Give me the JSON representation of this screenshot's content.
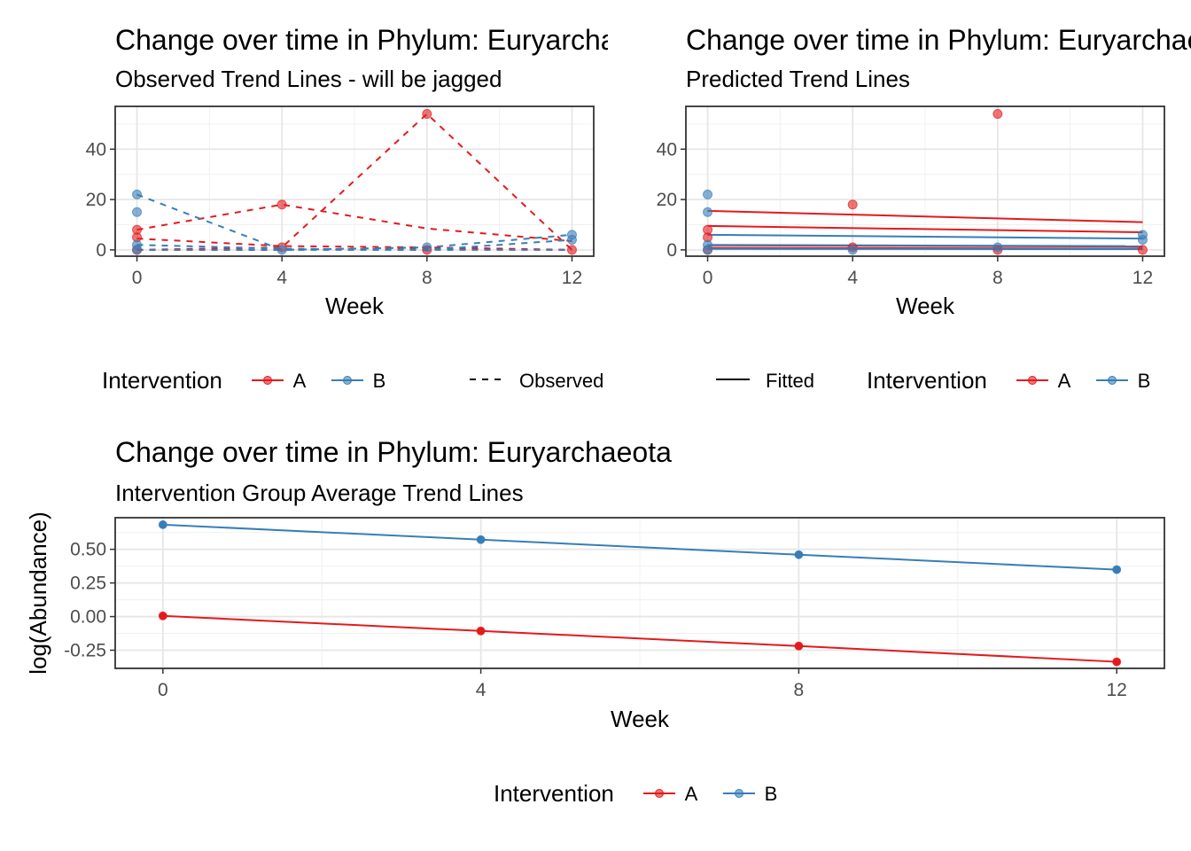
{
  "colors": {
    "A": "#E41A1C",
    "B": "#377EB8"
  },
  "chart_data": [
    {
      "type": "line",
      "title": "Change over time in Phylum: Euryarchaeota",
      "subtitle": "Observed Trend Lines - will be jagged",
      "xlabel": "Week",
      "ylabel": "",
      "x_ticks": [
        0,
        4,
        8,
        12
      ],
      "y_ticks": [
        0,
        20,
        40
      ],
      "xlim": [
        -0.6,
        12.6
      ],
      "ylim": [
        -2.5,
        57
      ],
      "grid": true,
      "line_style": "dashed",
      "legend": {
        "title": "Intervention",
        "items": [
          "A",
          "B"
        ],
        "linetype_label": "Observed",
        "position": "bottom"
      },
      "series": [
        {
          "group": "A",
          "x": [
            0,
            4,
            8,
            12
          ],
          "y": [
            0,
            1,
            54,
            0
          ]
        },
        {
          "group": "A",
          "x": [
            0,
            4,
            8,
            12
          ],
          "y": [
            8,
            18,
            8.5,
            3.5
          ]
        },
        {
          "group": "A",
          "x": [
            0,
            4,
            8,
            12
          ],
          "y": [
            4.5,
            1.5,
            1,
            0
          ]
        },
        {
          "group": "A",
          "x": [
            0,
            4,
            8,
            12
          ],
          "y": [
            0,
            0,
            0.5,
            0
          ]
        },
        {
          "group": "B",
          "x": [
            0,
            4,
            8,
            12
          ],
          "y": [
            22,
            0,
            1,
            6
          ]
        },
        {
          "group": "B",
          "x": [
            0,
            4,
            8,
            12
          ],
          "y": [
            2,
            0.5,
            0,
            4
          ]
        },
        {
          "group": "B",
          "x": [
            0,
            4,
            8,
            12
          ],
          "y": [
            0,
            0,
            0,
            0
          ]
        }
      ],
      "points": [
        {
          "group": "A",
          "x": [
            0,
            0,
            0,
            4,
            4,
            8,
            8,
            12
          ],
          "y": [
            8,
            5,
            0,
            18,
            1,
            54,
            0,
            0
          ]
        },
        {
          "group": "B",
          "x": [
            0,
            0,
            0,
            0,
            4,
            8,
            12,
            12
          ],
          "y": [
            22,
            15,
            2,
            0,
            0,
            1,
            6,
            4
          ]
        }
      ]
    },
    {
      "type": "line",
      "title": "Change over time in Phylum: Euryarchaeota",
      "subtitle": "Predicted Trend Lines",
      "xlabel": "Week",
      "ylabel": "",
      "x_ticks": [
        0,
        4,
        8,
        12
      ],
      "y_ticks": [
        0,
        20,
        40
      ],
      "xlim": [
        -0.6,
        12.6
      ],
      "ylim": [
        -2.5,
        57
      ],
      "grid": true,
      "line_style": "solid",
      "legend": {
        "title": "Intervention",
        "items": [
          "A",
          "B"
        ],
        "linetype_label": "Fitted",
        "position": "bottom"
      },
      "series": [
        {
          "group": "A",
          "x": [
            0,
            12
          ],
          "y": [
            15.5,
            11
          ]
        },
        {
          "group": "A",
          "x": [
            0,
            12
          ],
          "y": [
            9.5,
            7
          ]
        },
        {
          "group": "A",
          "x": [
            0,
            12
          ],
          "y": [
            1.8,
            1.3
          ]
        },
        {
          "group": "A",
          "x": [
            0,
            12
          ],
          "y": [
            0.8,
            0.5
          ]
        },
        {
          "group": "B",
          "x": [
            0,
            12
          ],
          "y": [
            6,
            4.5
          ]
        },
        {
          "group": "B",
          "x": [
            0,
            12
          ],
          "y": [
            2,
            1.5
          ]
        },
        {
          "group": "B",
          "x": [
            0,
            12
          ],
          "y": [
            0.4,
            0.3
          ]
        }
      ],
      "points": [
        {
          "group": "A",
          "x": [
            0,
            0,
            0,
            4,
            4,
            8,
            8,
            12
          ],
          "y": [
            8,
            5,
            0,
            18,
            1,
            54,
            0,
            0
          ]
        },
        {
          "group": "B",
          "x": [
            0,
            0,
            0,
            0,
            4,
            8,
            12,
            12
          ],
          "y": [
            22,
            15,
            2,
            0,
            0,
            1,
            6,
            4
          ]
        }
      ]
    },
    {
      "type": "line",
      "title": "Change over time in Phylum: Euryarchaeota",
      "subtitle": "Intervention Group Average Trend Lines",
      "xlabel": "Week",
      "ylabel": "log(Abundance)",
      "x_ticks": [
        0,
        4,
        8,
        12
      ],
      "y_ticks": [
        -0.25,
        0.0,
        0.25,
        0.5
      ],
      "y_tick_labels": [
        "-0.25",
        "0.00",
        "0.25",
        "0.50"
      ],
      "xlim": [
        -0.6,
        12.6
      ],
      "ylim": [
        -0.385,
        0.735
      ],
      "grid": true,
      "line_style": "solid",
      "legend": {
        "title": "Intervention",
        "items": [
          "A",
          "B"
        ],
        "position": "bottom"
      },
      "series": [
        {
          "group": "A",
          "x": [
            0,
            4,
            8,
            12
          ],
          "y": [
            0.005,
            -0.107,
            -0.219,
            -0.336
          ]
        },
        {
          "group": "B",
          "x": [
            0,
            4,
            8,
            12
          ],
          "y": [
            0.683,
            0.572,
            0.46,
            0.349
          ]
        }
      ],
      "points": [
        {
          "group": "A",
          "x": [
            0,
            4,
            8,
            12
          ],
          "y": [
            0.005,
            -0.107,
            -0.219,
            -0.336
          ]
        },
        {
          "group": "B",
          "x": [
            0,
            4,
            8,
            12
          ],
          "y": [
            0.683,
            0.572,
            0.46,
            0.349
          ]
        }
      ]
    }
  ]
}
